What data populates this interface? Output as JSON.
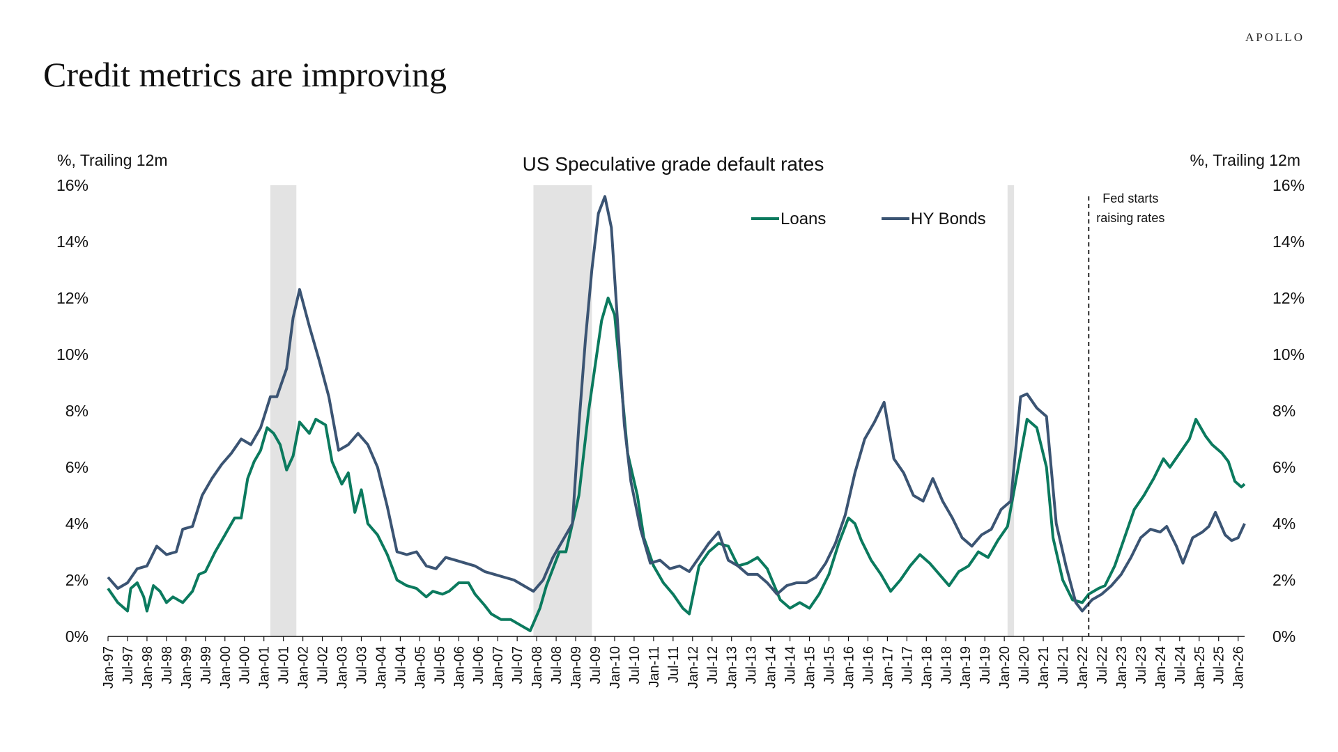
{
  "brand": "APOLLO",
  "headline": "Credit metrics are improving",
  "colors": {
    "loans": "#0b7a5e",
    "bonds": "#3b5473",
    "recession": "#e3e3e3"
  },
  "chart_data": {
    "type": "line",
    "title": "US Speculative grade default rates",
    "ylabel_left": "%, Trailing 12m",
    "ylabel_right": "%, Trailing 12m",
    "ylim": [
      0,
      16
    ],
    "y_ticks": [
      "0%",
      "2%",
      "4%",
      "6%",
      "8%",
      "10%",
      "12%",
      "14%",
      "16%"
    ],
    "x_range": [
      "1997-01",
      "2026-03"
    ],
    "x_tick_labels": [
      "Jan-97",
      "Jul-97",
      "Jan-98",
      "Jul-98",
      "Jan-99",
      "Jul-99",
      "Jan-00",
      "Jul-00",
      "Jan-01",
      "Jul-01",
      "Jan-02",
      "Jul-02",
      "Jan-03",
      "Jul-03",
      "Jan-04",
      "Jul-04",
      "Jan-05",
      "Jul-05",
      "Jan-06",
      "Jul-06",
      "Jan-07",
      "Jul-07",
      "Jan-08",
      "Jul-08",
      "Jan-09",
      "Jul-09",
      "Jan-10",
      "Jul-10",
      "Jan-11",
      "Jul-11",
      "Jan-12",
      "Jul-12",
      "Jan-13",
      "Jul-13",
      "Jan-14",
      "Jul-14",
      "Jan-15",
      "Jul-15",
      "Jan-16",
      "Jul-16",
      "Jan-17",
      "Jul-17",
      "Jan-18",
      "Jul-18",
      "Jan-19",
      "Jul-19",
      "Jan-20",
      "Jul-20",
      "Jan-21",
      "Jul-21",
      "Jan-22",
      "Jul-22",
      "Jan-23",
      "Jul-23",
      "Jan-24",
      "Jul-24",
      "Jan-25",
      "Jul-25",
      "Jan-26"
    ],
    "legend_position": "top-center",
    "recessions": [
      [
        "2001-03",
        "2001-11"
      ],
      [
        "2007-12",
        "2009-06"
      ],
      [
        "2020-02",
        "2020-04"
      ]
    ],
    "annotation": {
      "date": "2022-03",
      "lines": [
        "Fed starts",
        "raising rates"
      ]
    },
    "series": [
      {
        "name": "Loans",
        "points": [
          [
            "1997-01",
            1.7
          ],
          [
            "1997-04",
            1.2
          ],
          [
            "1997-07",
            0.9
          ],
          [
            "1997-08",
            1.7
          ],
          [
            "1997-10",
            1.9
          ],
          [
            "1997-12",
            1.4
          ],
          [
            "1998-01",
            0.9
          ],
          [
            "1998-03",
            1.8
          ],
          [
            "1998-05",
            1.6
          ],
          [
            "1998-07",
            1.2
          ],
          [
            "1998-09",
            1.4
          ],
          [
            "1998-12",
            1.2
          ],
          [
            "1999-03",
            1.6
          ],
          [
            "1999-05",
            2.2
          ],
          [
            "1999-07",
            2.3
          ],
          [
            "1999-10",
            3.0
          ],
          [
            "2000-01",
            3.6
          ],
          [
            "2000-04",
            4.2
          ],
          [
            "2000-06",
            4.2
          ],
          [
            "2000-08",
            5.6
          ],
          [
            "2000-10",
            6.2
          ],
          [
            "2000-12",
            6.6
          ],
          [
            "2001-02",
            7.4
          ],
          [
            "2001-04",
            7.2
          ],
          [
            "2001-06",
            6.8
          ],
          [
            "2001-08",
            5.9
          ],
          [
            "2001-10",
            6.4
          ],
          [
            "2001-12",
            7.6
          ],
          [
            "2002-03",
            7.2
          ],
          [
            "2002-05",
            7.7
          ],
          [
            "2002-08",
            7.5
          ],
          [
            "2002-10",
            6.2
          ],
          [
            "2003-01",
            5.4
          ],
          [
            "2003-03",
            5.8
          ],
          [
            "2003-05",
            4.4
          ],
          [
            "2003-07",
            5.2
          ],
          [
            "2003-09",
            4.0
          ],
          [
            "2003-12",
            3.6
          ],
          [
            "2004-03",
            2.9
          ],
          [
            "2004-06",
            2.0
          ],
          [
            "2004-09",
            1.8
          ],
          [
            "2004-12",
            1.7
          ],
          [
            "2005-03",
            1.4
          ],
          [
            "2005-05",
            1.6
          ],
          [
            "2005-08",
            1.5
          ],
          [
            "2005-10",
            1.6
          ],
          [
            "2006-01",
            1.9
          ],
          [
            "2006-04",
            1.9
          ],
          [
            "2006-06",
            1.5
          ],
          [
            "2006-09",
            1.1
          ],
          [
            "2006-11",
            0.8
          ],
          [
            "2007-02",
            0.6
          ],
          [
            "2007-05",
            0.6
          ],
          [
            "2007-08",
            0.4
          ],
          [
            "2007-11",
            0.2
          ],
          [
            "2008-02",
            1.0
          ],
          [
            "2008-04",
            1.8
          ],
          [
            "2008-06",
            2.4
          ],
          [
            "2008-08",
            3.0
          ],
          [
            "2008-10",
            3.0
          ],
          [
            "2008-12",
            4.0
          ],
          [
            "2009-02",
            5.0
          ],
          [
            "2009-05",
            8.0
          ],
          [
            "2009-07",
            9.6
          ],
          [
            "2009-09",
            11.2
          ],
          [
            "2009-11",
            12.0
          ],
          [
            "2010-01",
            11.4
          ],
          [
            "2010-03",
            9.0
          ],
          [
            "2010-05",
            6.5
          ],
          [
            "2010-08",
            5.0
          ],
          [
            "2010-10",
            3.5
          ],
          [
            "2011-01",
            2.5
          ],
          [
            "2011-04",
            1.9
          ],
          [
            "2011-07",
            1.5
          ],
          [
            "2011-10",
            1.0
          ],
          [
            "2011-12",
            0.8
          ],
          [
            "2012-03",
            2.5
          ],
          [
            "2012-06",
            3.0
          ],
          [
            "2012-09",
            3.3
          ],
          [
            "2012-12",
            3.2
          ],
          [
            "2013-03",
            2.5
          ],
          [
            "2013-06",
            2.6
          ],
          [
            "2013-09",
            2.8
          ],
          [
            "2013-12",
            2.4
          ],
          [
            "2014-04",
            1.3
          ],
          [
            "2014-07",
            1.0
          ],
          [
            "2014-10",
            1.2
          ],
          [
            "2015-01",
            1.0
          ],
          [
            "2015-04",
            1.5
          ],
          [
            "2015-07",
            2.2
          ],
          [
            "2015-10",
            3.3
          ],
          [
            "2016-01",
            4.2
          ],
          [
            "2016-03",
            4.0
          ],
          [
            "2016-05",
            3.4
          ],
          [
            "2016-08",
            2.7
          ],
          [
            "2016-11",
            2.2
          ],
          [
            "2017-02",
            1.6
          ],
          [
            "2017-05",
            2.0
          ],
          [
            "2017-08",
            2.5
          ],
          [
            "2017-11",
            2.9
          ],
          [
            "2018-02",
            2.6
          ],
          [
            "2018-05",
            2.2
          ],
          [
            "2018-08",
            1.8
          ],
          [
            "2018-11",
            2.3
          ],
          [
            "2019-02",
            2.5
          ],
          [
            "2019-05",
            3.0
          ],
          [
            "2019-08",
            2.8
          ],
          [
            "2019-11",
            3.4
          ],
          [
            "2020-02",
            3.9
          ],
          [
            "2020-05",
            5.8
          ],
          [
            "2020-08",
            7.7
          ],
          [
            "2020-11",
            7.4
          ],
          [
            "2021-02",
            6.0
          ],
          [
            "2021-04",
            3.5
          ],
          [
            "2021-07",
            2.0
          ],
          [
            "2021-10",
            1.3
          ],
          [
            "2022-01",
            1.2
          ],
          [
            "2022-03",
            1.5
          ],
          [
            "2022-06",
            1.7
          ],
          [
            "2022-08",
            1.8
          ],
          [
            "2022-11",
            2.5
          ],
          [
            "2023-02",
            3.5
          ],
          [
            "2023-05",
            4.5
          ],
          [
            "2023-08",
            5.0
          ],
          [
            "2023-11",
            5.6
          ],
          [
            "2024-02",
            6.3
          ],
          [
            "2024-04",
            6.0
          ],
          [
            "2024-07",
            6.5
          ],
          [
            "2024-10",
            7.0
          ],
          [
            "2024-12",
            7.7
          ],
          [
            "2025-03",
            7.1
          ],
          [
            "2025-05",
            6.8
          ],
          [
            "2025-08",
            6.5
          ],
          [
            "2025-10",
            6.2
          ],
          [
            "2025-12",
            5.5
          ],
          [
            "2026-02",
            5.3
          ],
          [
            "2026-03",
            5.4
          ]
        ]
      },
      {
        "name": "HY Bonds",
        "points": [
          [
            "1997-01",
            2.1
          ],
          [
            "1997-04",
            1.7
          ],
          [
            "1997-07",
            1.9
          ],
          [
            "1997-10",
            2.4
          ],
          [
            "1998-01",
            2.5
          ],
          [
            "1998-04",
            3.2
          ],
          [
            "1998-07",
            2.9
          ],
          [
            "1998-10",
            3.0
          ],
          [
            "1998-12",
            3.8
          ],
          [
            "1999-03",
            3.9
          ],
          [
            "1999-06",
            5.0
          ],
          [
            "1999-09",
            5.6
          ],
          [
            "1999-12",
            6.1
          ],
          [
            "2000-03",
            6.5
          ],
          [
            "2000-06",
            7.0
          ],
          [
            "2000-09",
            6.8
          ],
          [
            "2000-12",
            7.4
          ],
          [
            "2001-03",
            8.5
          ],
          [
            "2001-05",
            8.5
          ],
          [
            "2001-08",
            9.5
          ],
          [
            "2001-10",
            11.3
          ],
          [
            "2001-12",
            12.3
          ],
          [
            "2002-03",
            11.0
          ],
          [
            "2002-06",
            9.8
          ],
          [
            "2002-09",
            8.5
          ],
          [
            "2002-12",
            6.6
          ],
          [
            "2003-03",
            6.8
          ],
          [
            "2003-06",
            7.2
          ],
          [
            "2003-09",
            6.8
          ],
          [
            "2003-12",
            6.0
          ],
          [
            "2004-03",
            4.6
          ],
          [
            "2004-06",
            3.0
          ],
          [
            "2004-09",
            2.9
          ],
          [
            "2004-12",
            3.0
          ],
          [
            "2005-03",
            2.5
          ],
          [
            "2005-06",
            2.4
          ],
          [
            "2005-09",
            2.8
          ],
          [
            "2005-12",
            2.7
          ],
          [
            "2006-03",
            2.6
          ],
          [
            "2006-06",
            2.5
          ],
          [
            "2006-09",
            2.3
          ],
          [
            "2006-12",
            2.2
          ],
          [
            "2007-03",
            2.1
          ],
          [
            "2007-06",
            2.0
          ],
          [
            "2007-09",
            1.8
          ],
          [
            "2007-12",
            1.6
          ],
          [
            "2008-03",
            2.0
          ],
          [
            "2008-06",
            2.8
          ],
          [
            "2008-09",
            3.4
          ],
          [
            "2008-12",
            4.0
          ],
          [
            "2009-02",
            7.5
          ],
          [
            "2009-04",
            10.5
          ],
          [
            "2009-06",
            13.0
          ],
          [
            "2009-08",
            15.0
          ],
          [
            "2009-10",
            15.6
          ],
          [
            "2009-12",
            14.5
          ],
          [
            "2010-02",
            11.0
          ],
          [
            "2010-04",
            7.5
          ],
          [
            "2010-06",
            5.5
          ],
          [
            "2010-09",
            3.8
          ],
          [
            "2010-12",
            2.6
          ],
          [
            "2011-03",
            2.7
          ],
          [
            "2011-06",
            2.4
          ],
          [
            "2011-09",
            2.5
          ],
          [
            "2011-12",
            2.3
          ],
          [
            "2012-03",
            2.8
          ],
          [
            "2012-06",
            3.3
          ],
          [
            "2012-09",
            3.7
          ],
          [
            "2012-12",
            2.7
          ],
          [
            "2013-03",
            2.5
          ],
          [
            "2013-06",
            2.2
          ],
          [
            "2013-09",
            2.2
          ],
          [
            "2013-12",
            1.9
          ],
          [
            "2014-03",
            1.5
          ],
          [
            "2014-06",
            1.8
          ],
          [
            "2014-09",
            1.9
          ],
          [
            "2014-12",
            1.9
          ],
          [
            "2015-03",
            2.1
          ],
          [
            "2015-06",
            2.6
          ],
          [
            "2015-09",
            3.3
          ],
          [
            "2015-12",
            4.3
          ],
          [
            "2016-03",
            5.8
          ],
          [
            "2016-06",
            7.0
          ],
          [
            "2016-09",
            7.6
          ],
          [
            "2016-12",
            8.3
          ],
          [
            "2017-03",
            6.3
          ],
          [
            "2017-06",
            5.8
          ],
          [
            "2017-09",
            5.0
          ],
          [
            "2017-12",
            4.8
          ],
          [
            "2018-03",
            5.6
          ],
          [
            "2018-06",
            4.8
          ],
          [
            "2018-09",
            4.2
          ],
          [
            "2018-12",
            3.5
          ],
          [
            "2019-03",
            3.2
          ],
          [
            "2019-06",
            3.6
          ],
          [
            "2019-09",
            3.8
          ],
          [
            "2019-12",
            4.5
          ],
          [
            "2020-03",
            4.8
          ],
          [
            "2020-06",
            8.5
          ],
          [
            "2020-08",
            8.6
          ],
          [
            "2020-11",
            8.1
          ],
          [
            "2021-02",
            7.8
          ],
          [
            "2021-05",
            4.0
          ],
          [
            "2021-08",
            2.5
          ],
          [
            "2021-11",
            1.2
          ],
          [
            "2022-01",
            0.9
          ],
          [
            "2022-04",
            1.3
          ],
          [
            "2022-07",
            1.5
          ],
          [
            "2022-10",
            1.8
          ],
          [
            "2023-01",
            2.2
          ],
          [
            "2023-04",
            2.8
          ],
          [
            "2023-07",
            3.5
          ],
          [
            "2023-10",
            3.8
          ],
          [
            "2024-01",
            3.7
          ],
          [
            "2024-03",
            3.9
          ],
          [
            "2024-06",
            3.2
          ],
          [
            "2024-08",
            2.6
          ],
          [
            "2024-11",
            3.5
          ],
          [
            "2025-02",
            3.7
          ],
          [
            "2025-04",
            3.9
          ],
          [
            "2025-06",
            4.4
          ],
          [
            "2025-09",
            3.6
          ],
          [
            "2025-11",
            3.4
          ],
          [
            "2026-01",
            3.5
          ],
          [
            "2026-03",
            4.0
          ]
        ]
      }
    ]
  }
}
